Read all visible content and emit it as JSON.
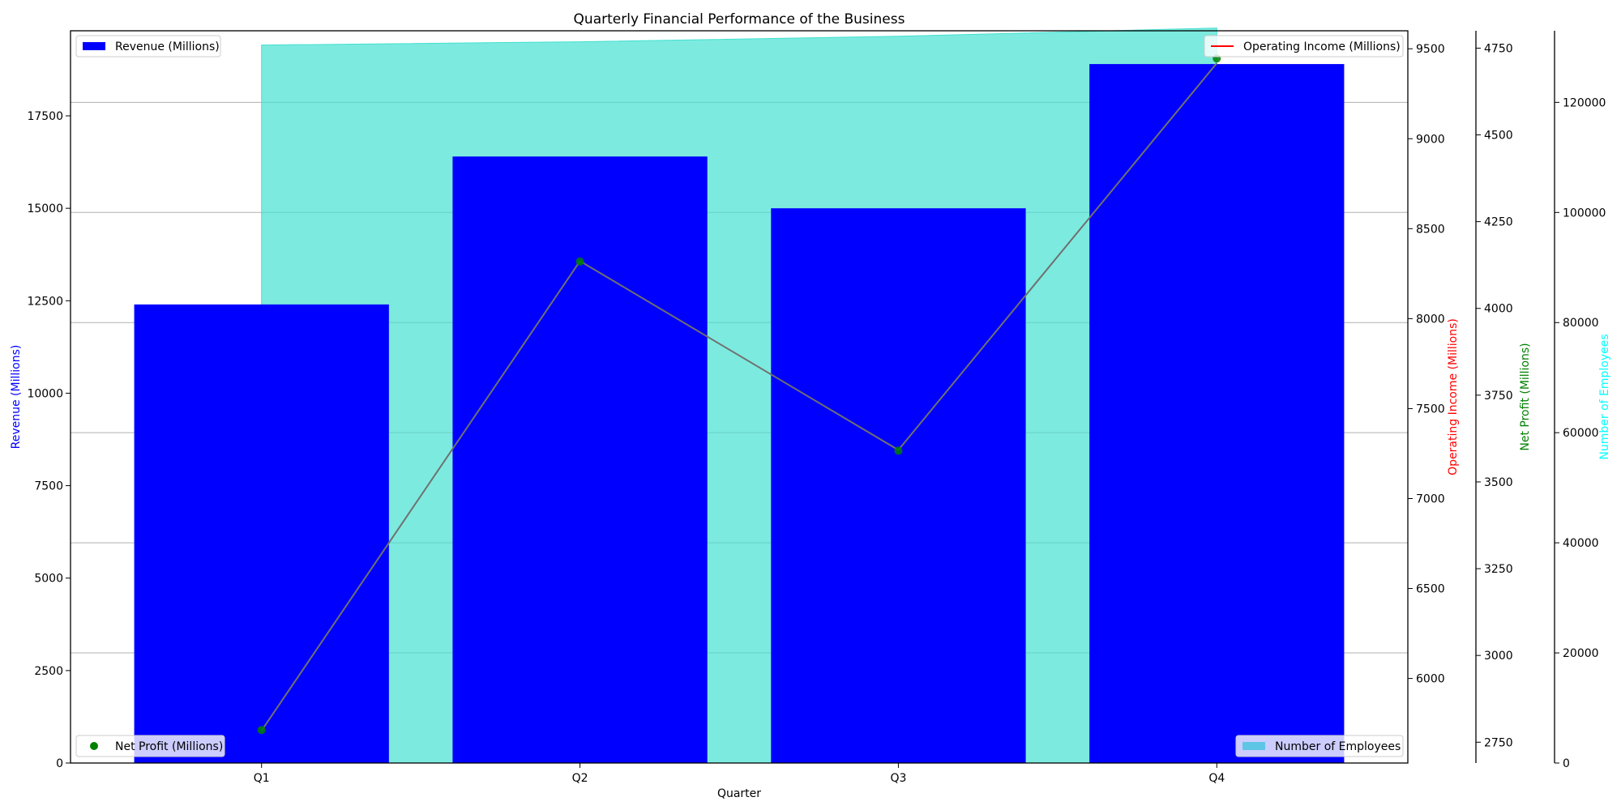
{
  "chart_data": {
    "type": "bar",
    "title": "Quarterly Financial Performance of the Business",
    "xlabel": "Quarter",
    "categories": [
      "Q1",
      "Q2",
      "Q3",
      "Q4"
    ],
    "grid": true,
    "series": [
      {
        "name": "Revenue (Millions)",
        "type": "bar",
        "axis": "left",
        "ylabel": "Revenue (Millions)",
        "ylim": [
          0,
          19800
        ],
        "ticks": [
          0,
          2500,
          5000,
          7500,
          10000,
          12500,
          15000,
          17500
        ],
        "values": [
          12400,
          16400,
          15000,
          18900
        ],
        "color": "#0000ff",
        "legend_position": "top-left"
      },
      {
        "name": "Operating Income (Millions)",
        "type": "line",
        "axis": "right-1",
        "ylabel": "Operating Income (Millions)",
        "ylim": [
          5530,
          9600
        ],
        "ticks": [
          6000,
          6500,
          7000,
          7500,
          8000,
          8500,
          9000,
          9500
        ],
        "values": [
          5710,
          8320,
          7270,
          9420
        ],
        "color": "#ff0000",
        "legend_position": "top-right"
      },
      {
        "name": "Net Profit (Millions)",
        "type": "scatter",
        "axis": "right-2",
        "ylabel": "Net Profit (Millions)",
        "ylim": [
          2690,
          4800
        ],
        "ticks": [
          2750,
          3000,
          3250,
          3500,
          3750,
          4000,
          4250,
          4500,
          4750
        ],
        "values": [
          2785,
          4135,
          3590,
          4720
        ],
        "color": "#008000",
        "legend_position": "bottom-left"
      },
      {
        "name": "Number of Employees",
        "type": "area",
        "axis": "right-3",
        "ylabel": "Number of Employees",
        "ylim": [
          0,
          133000
        ],
        "ticks": [
          0,
          20000,
          40000,
          60000,
          80000,
          100000,
          120000
        ],
        "values": [
          130400,
          131000,
          132000,
          133500
        ],
        "color": "#40e0d0",
        "legend_position": "bottom-right"
      }
    ]
  }
}
